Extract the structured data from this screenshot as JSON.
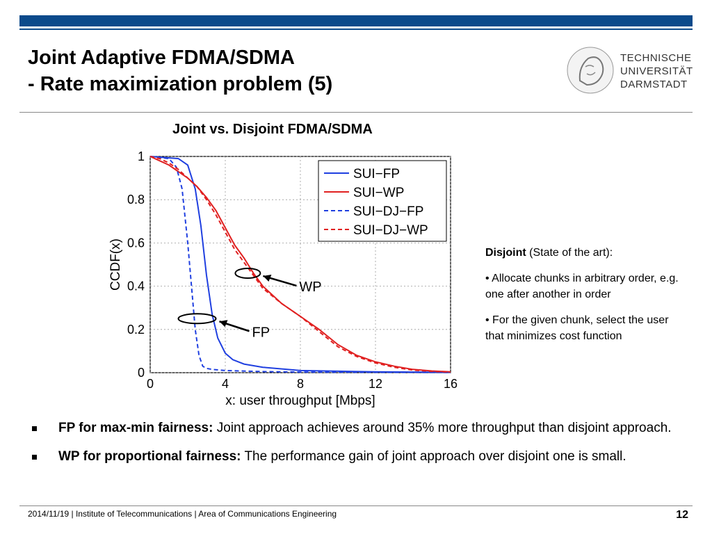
{
  "header": {
    "title_line1": "Joint Adaptive FDMA/SDMA",
    "title_line2": "- Rate maximization problem (5)",
    "logo": {
      "line1": "TECHNISCHE",
      "line2": "UNIVERSITÄT",
      "line3": "DARMSTADT"
    }
  },
  "chart_title": "Joint vs. Disjoint FDMA/SDMA",
  "chart_data": {
    "type": "line",
    "title": "Joint vs. Disjoint FDMA/SDMA",
    "xlabel": "x: user throughput [Mbps]",
    "ylabel": "CCDF(x)",
    "xlim": [
      0,
      16
    ],
    "ylim": [
      0,
      1
    ],
    "xticks": [
      "0",
      "4",
      "8",
      "12",
      "16"
    ],
    "yticks": [
      "0",
      "0.2",
      "0.4",
      "0.6",
      "0.8",
      "1"
    ],
    "grid": true,
    "legend_position": "top-right",
    "series": [
      {
        "name": "SUI−FP",
        "color": "#1f3fe0",
        "dash": false,
        "x": [
          0,
          1.5,
          2.0,
          2.4,
          2.7,
          3.0,
          3.3,
          3.6,
          4.0,
          4.4,
          5.0,
          6.0,
          8.0,
          12.0,
          16.0
        ],
        "y": [
          1.0,
          0.99,
          0.96,
          0.85,
          0.68,
          0.45,
          0.27,
          0.16,
          0.09,
          0.06,
          0.04,
          0.025,
          0.01,
          0.004,
          0.002
        ]
      },
      {
        "name": "SUI−WP",
        "color": "#e02020",
        "dash": false,
        "x": [
          0,
          0.5,
          1.0,
          1.5,
          2.0,
          2.5,
          3.0,
          3.5,
          4.0,
          4.5,
          5.0,
          5.5,
          6.0,
          7.0,
          8.0,
          9.0,
          10.0,
          11.0,
          12.0,
          13.0,
          14.0,
          15.0,
          16.0
        ],
        "y": [
          1.0,
          0.98,
          0.96,
          0.93,
          0.9,
          0.86,
          0.81,
          0.75,
          0.67,
          0.59,
          0.53,
          0.46,
          0.4,
          0.32,
          0.26,
          0.2,
          0.13,
          0.08,
          0.05,
          0.03,
          0.015,
          0.008,
          0.004
        ]
      },
      {
        "name": "SUI−DJ−FP",
        "color": "#1f3fe0",
        "dash": true,
        "x": [
          0,
          1.0,
          1.4,
          1.7,
          2.0,
          2.2,
          2.4,
          2.6,
          2.8,
          3.0,
          3.3,
          4.0,
          6.0,
          8.0,
          12.0,
          16.0
        ],
        "y": [
          1.0,
          0.99,
          0.95,
          0.85,
          0.6,
          0.4,
          0.2,
          0.08,
          0.03,
          0.02,
          0.015,
          0.01,
          0.005,
          0.003,
          0.002,
          0.001
        ]
      },
      {
        "name": "SUI−DJ−WP",
        "color": "#e02020",
        "dash": true,
        "x": [
          0,
          0.5,
          1.0,
          1.5,
          2.0,
          2.5,
          3.0,
          3.5,
          4.0,
          4.5,
          5.0,
          5.5,
          6.0,
          7.0,
          8.0,
          9.0,
          10.0,
          11.0,
          12.0,
          13.0,
          14.0,
          15.0,
          16.0
        ],
        "y": [
          1.0,
          0.99,
          0.97,
          0.94,
          0.9,
          0.86,
          0.8,
          0.73,
          0.65,
          0.57,
          0.51,
          0.45,
          0.39,
          0.32,
          0.26,
          0.19,
          0.12,
          0.075,
          0.045,
          0.025,
          0.012,
          0.006,
          0.003
        ]
      }
    ],
    "annotations": [
      {
        "text": "WP",
        "ellipse_at": [
          5.2,
          0.46
        ],
        "arrow_from_label": true
      },
      {
        "text": "FP",
        "ellipse_at": [
          2.5,
          0.25
        ],
        "arrow_from_label": true
      }
    ]
  },
  "side": {
    "heading_bold": "Disjoint",
    "heading_rest": " (State of the art):",
    "point1": "• Allocate chunks in arbitrary order, e.g. one after another in order",
    "point2": "• For the given chunk, select the user that minimizes cost function"
  },
  "bullets": [
    {
      "bold": "FP for max-min fairness:",
      "text": " Joint approach achieves around 35% more throughput than disjoint approach."
    },
    {
      "bold": "WP for proportional fairness:",
      "text": " The performance gain of joint approach over disjoint one is small."
    }
  ],
  "footer": {
    "text": "2014/11/19  |  Institute of Telecommunications   |  Area of Communications Engineering",
    "page": "12"
  }
}
